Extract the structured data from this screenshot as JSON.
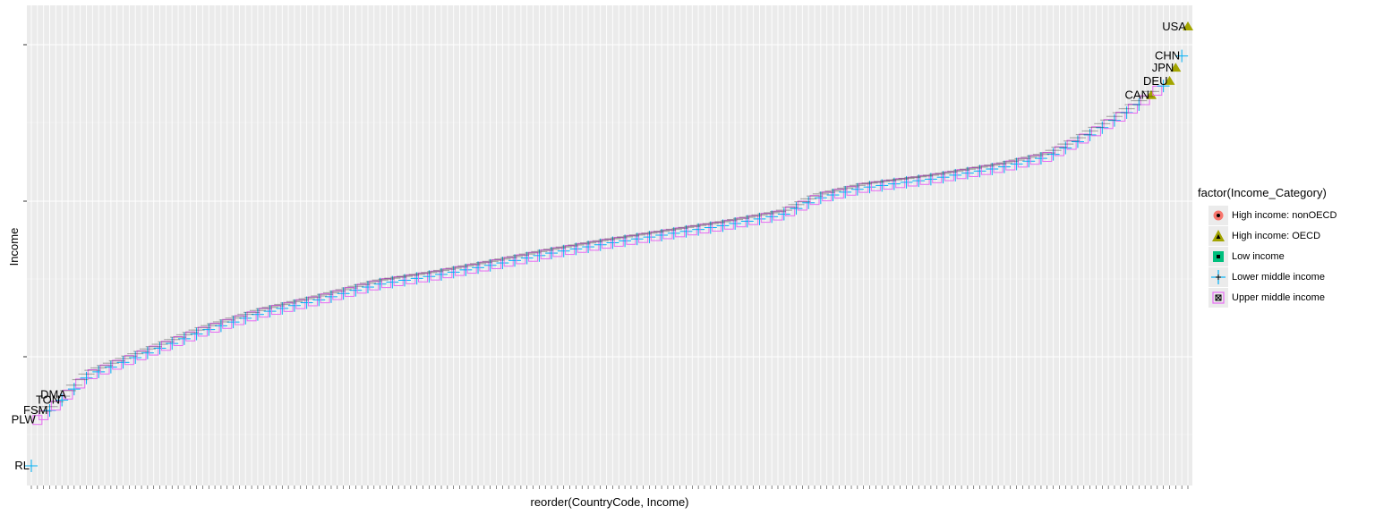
{
  "chart_data": {
    "type": "scatter",
    "xlabel": "reorder(CountryCode, Income)",
    "ylabel": "Income",
    "n_points": 190,
    "legend": {
      "title": "factor(Income_Category)",
      "entries": [
        {
          "label": "High income: nonOECD",
          "color": "#F8766D",
          "shape": "circle"
        },
        {
          "label": "High income: OECD",
          "color": "#A3A500",
          "shape": "triangle"
        },
        {
          "label": "Low income",
          "color": "#00BF7D",
          "shape": "square"
        },
        {
          "label": "Lower middle income",
          "color": "#00B0F6",
          "shape": "plus"
        },
        {
          "label": "Upper middle income",
          "color": "#E76BF3",
          "shape": "square-cross"
        }
      ]
    },
    "visible_labels": [
      {
        "rank": 1,
        "label": "USA",
        "category": "High income: OECD"
      },
      {
        "rank": 2,
        "label": "CHN",
        "category": "Lower middle income"
      },
      {
        "rank": 3,
        "label": "JPN",
        "category": "High income: OECD"
      },
      {
        "rank": 4,
        "label": "DEU",
        "category": "High income: OECD"
      },
      {
        "rank": 7,
        "label": "CAN",
        "category": "High income: OECD"
      },
      {
        "rank": 185,
        "label": "TON",
        "category": "Lower middle income"
      },
      {
        "rank": 184,
        "label": "DMA",
        "category": "Upper middle income"
      },
      {
        "rank": 187,
        "label": "FSM",
        "category": "Lower middle income"
      },
      {
        "rank": 189,
        "label": "PLW",
        "category": "Upper middle income"
      },
      {
        "rank": 190,
        "label": "RL",
        "category": "Lower middle income"
      }
    ],
    "grid": true,
    "theme_background": "#EBEBEB"
  }
}
